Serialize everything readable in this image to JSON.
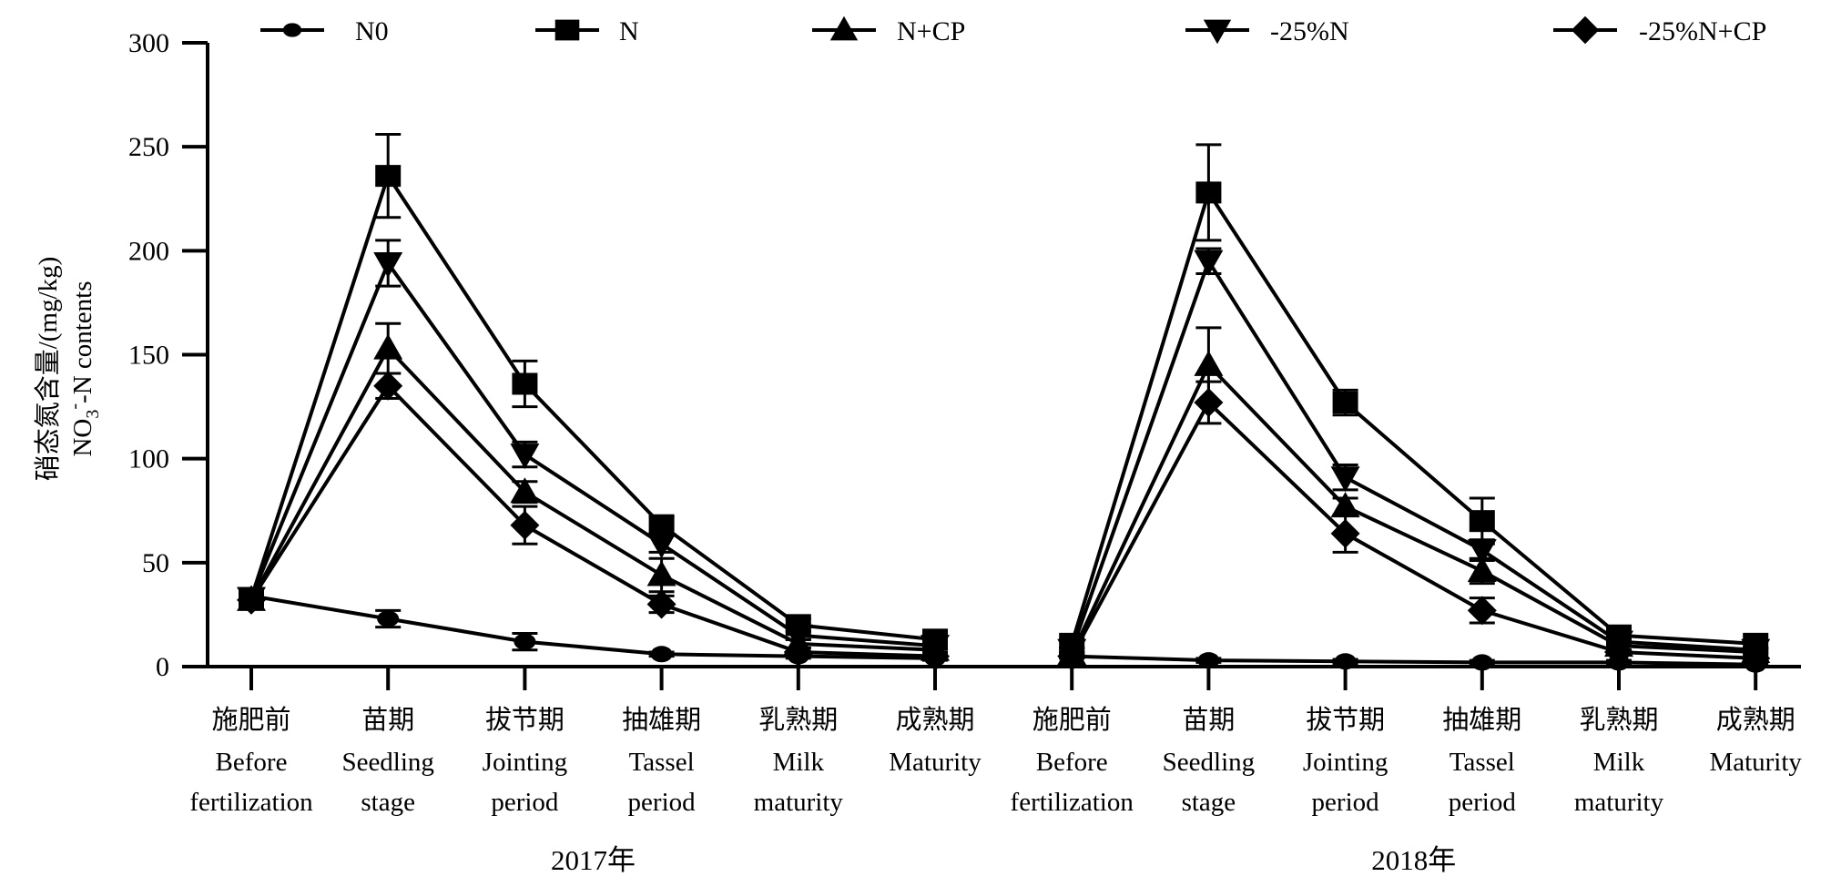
{
  "chart_data": {
    "type": "line",
    "title": "",
    "ylabel_cn": "硝态氮含量/(mg/kg)",
    "ylabel_en": "NO3⁻-N contents",
    "ylabel_en_parts": {
      "main": "NO",
      "sub": "3",
      "sup": "-",
      "rest": "-N contents"
    },
    "ylim": [
      0,
      300
    ],
    "yticks": [
      0,
      50,
      100,
      150,
      200,
      250,
      300
    ],
    "legend_position": "top",
    "groups": [
      {
        "label": "2017年",
        "start": 0,
        "end": 5
      },
      {
        "label": "2018年",
        "start": 6,
        "end": 11
      }
    ],
    "categories": [
      {
        "cn": "施肥前",
        "en": [
          "Before",
          "fertilization"
        ]
      },
      {
        "cn": "苗期",
        "en": [
          "Seedling",
          "stage"
        ]
      },
      {
        "cn": "拔节期",
        "en": [
          "Jointing",
          "period"
        ]
      },
      {
        "cn": "抽雄期",
        "en": [
          "Tassel",
          "period"
        ]
      },
      {
        "cn": "乳熟期",
        "en": [
          "Milk",
          "maturity"
        ]
      },
      {
        "cn": "成熟期",
        "en": [
          "Maturity"
        ]
      },
      {
        "cn": "施肥前",
        "en": [
          "Before",
          "fertilization"
        ]
      },
      {
        "cn": "苗期",
        "en": [
          "Seedling",
          "stage"
        ]
      },
      {
        "cn": "拔节期",
        "en": [
          "Jointing",
          "period"
        ]
      },
      {
        "cn": "抽雄期",
        "en": [
          "Tassel",
          "period"
        ]
      },
      {
        "cn": "乳熟期",
        "en": [
          "Milk",
          "maturity"
        ]
      },
      {
        "cn": "成熟期",
        "en": [
          "Maturity"
        ]
      }
    ],
    "series": [
      {
        "name": "N0",
        "marker": "circle",
        "segments": [
          {
            "values": [
              34,
              23,
              12,
              6,
              5,
              4
            ],
            "errors": [
              3,
              4,
              4,
              1,
              1,
              1
            ]
          },
          {
            "values": [
              5,
              3,
              2.5,
              2,
              2,
              1
            ],
            "errors": [
              1,
              1,
              1,
              1,
              1,
              0.5
            ]
          }
        ]
      },
      {
        "name": "N",
        "marker": "square",
        "segments": [
          {
            "values": [
              33,
              236,
              136,
              68,
              20,
              13
            ],
            "errors": [
              3,
              20,
              11,
              4,
              3,
              2
            ]
          },
          {
            "values": [
              11,
              228,
              127,
              70,
              15,
              11
            ],
            "errors": [
              2,
              23,
              6,
              11,
              2,
              2
            ]
          }
        ]
      },
      {
        "name": "N+CP",
        "marker": "triangle-up",
        "segments": [
          {
            "values": [
              32,
              153,
              84,
              44,
              11,
              8
            ],
            "errors": [
              2,
              12,
              5,
              8,
              2,
              1
            ]
          },
          {
            "values": [
              6,
              145,
              77,
              46,
              10,
              7
            ],
            "errors": [
              1,
              18,
              4,
              6,
              2,
              1
            ]
          }
        ]
      },
      {
        "name": "-25%N",
        "marker": "triangle-down",
        "segments": [
          {
            "values": [
              33,
              194,
              102,
              59,
              15,
              10
            ],
            "errors": [
              2,
              11,
              6,
              4,
              2,
              1
            ]
          },
          {
            "values": [
              8,
              195,
              91,
              56,
              12,
              8
            ],
            "errors": [
              1,
              6,
              6,
              5,
              2,
              1
            ]
          }
        ]
      },
      {
        "name": "-25%N+CP",
        "marker": "diamond",
        "segments": [
          {
            "values": [
              32,
              135,
              68,
              30,
              7,
              5
            ],
            "errors": [
              2,
              6,
              9,
              4,
              2,
              1
            ]
          },
          {
            "values": [
              5,
              127,
              64,
              27,
              7,
              4
            ],
            "errors": [
              1,
              10,
              9,
              6,
              1,
              1
            ]
          }
        ]
      }
    ]
  }
}
